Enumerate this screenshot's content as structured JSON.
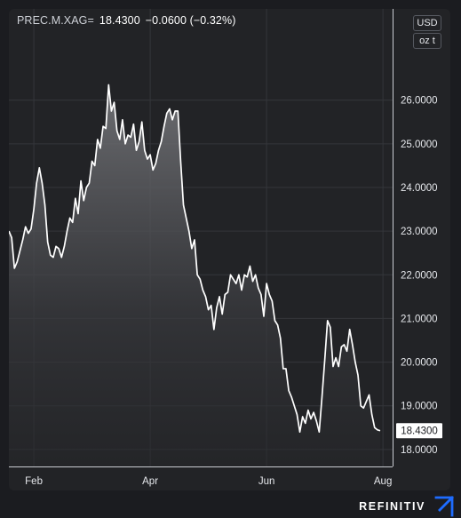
{
  "header": {
    "symbol": "PREC.M.XAG=",
    "last": "18.4300",
    "change": "−0.0600",
    "change_pct": "(−0.32%)"
  },
  "units": {
    "currency": "USD",
    "weight": "oz t"
  },
  "brand": {
    "name": "REFINITIV",
    "logo_icon": "refinitiv-arrow-icon",
    "logo_color": "#1e6cff"
  },
  "colors": {
    "background": "#222326",
    "line": "#ffffff",
    "grid": "#34363b",
    "axis_text": "#e6e8ec"
  },
  "chart_data": {
    "type": "area",
    "title": "",
    "xlabel": "",
    "ylabel": "",
    "x_ticks": [
      "Feb",
      "Apr",
      "Jun",
      "Aug"
    ],
    "x_tick_index": [
      9,
      51,
      93,
      135
    ],
    "y_ticks": [
      "26.0000",
      "25.0000",
      "24.0000",
      "23.0000",
      "22.0000",
      "21.0000",
      "20.0000",
      "19.0000",
      "18.0000"
    ],
    "ylim": [
      17.55,
      26.95
    ],
    "grid": true,
    "last_value_label": "18.4300",
    "series": [
      {
        "name": "",
        "values": [
          23.0,
          22.85,
          22.15,
          22.3,
          22.55,
          22.8,
          23.1,
          22.95,
          23.05,
          23.5,
          24.1,
          24.45,
          24.1,
          23.6,
          22.75,
          22.45,
          22.4,
          22.65,
          22.6,
          22.4,
          22.65,
          23.0,
          23.3,
          23.2,
          23.75,
          23.4,
          24.15,
          23.7,
          24.0,
          24.1,
          24.6,
          24.5,
          25.1,
          24.9,
          25.4,
          25.35,
          26.35,
          25.75,
          25.95,
          25.3,
          25.1,
          25.55,
          25.0,
          25.2,
          25.15,
          25.45,
          24.85,
          25.05,
          25.5,
          24.85,
          24.65,
          24.75,
          24.4,
          24.55,
          24.85,
          25.05,
          25.4,
          25.7,
          25.8,
          25.55,
          25.75,
          25.75,
          24.6,
          23.6,
          23.3,
          23.0,
          22.6,
          22.8,
          22.0,
          21.9,
          21.65,
          21.5,
          21.2,
          21.3,
          20.75,
          21.25,
          21.5,
          21.1,
          21.55,
          21.6,
          22.0,
          21.9,
          21.8,
          22.0,
          21.65,
          22.0,
          21.95,
          22.2,
          21.85,
          22.0,
          21.7,
          21.55,
          21.05,
          21.8,
          21.55,
          21.4,
          20.95,
          20.85,
          20.55,
          19.85,
          19.85,
          19.35,
          19.2,
          19.0,
          18.8,
          18.4,
          18.75,
          18.6,
          18.9,
          18.7,
          18.85,
          18.65,
          18.4,
          19.2,
          20.05,
          20.95,
          20.8,
          19.9,
          20.1,
          19.9,
          20.35,
          20.4,
          20.25,
          20.75,
          20.4,
          20.0,
          19.7,
          19.0,
          18.95,
          19.1,
          19.25,
          18.8,
          18.5,
          18.45,
          18.43
        ]
      }
    ]
  }
}
